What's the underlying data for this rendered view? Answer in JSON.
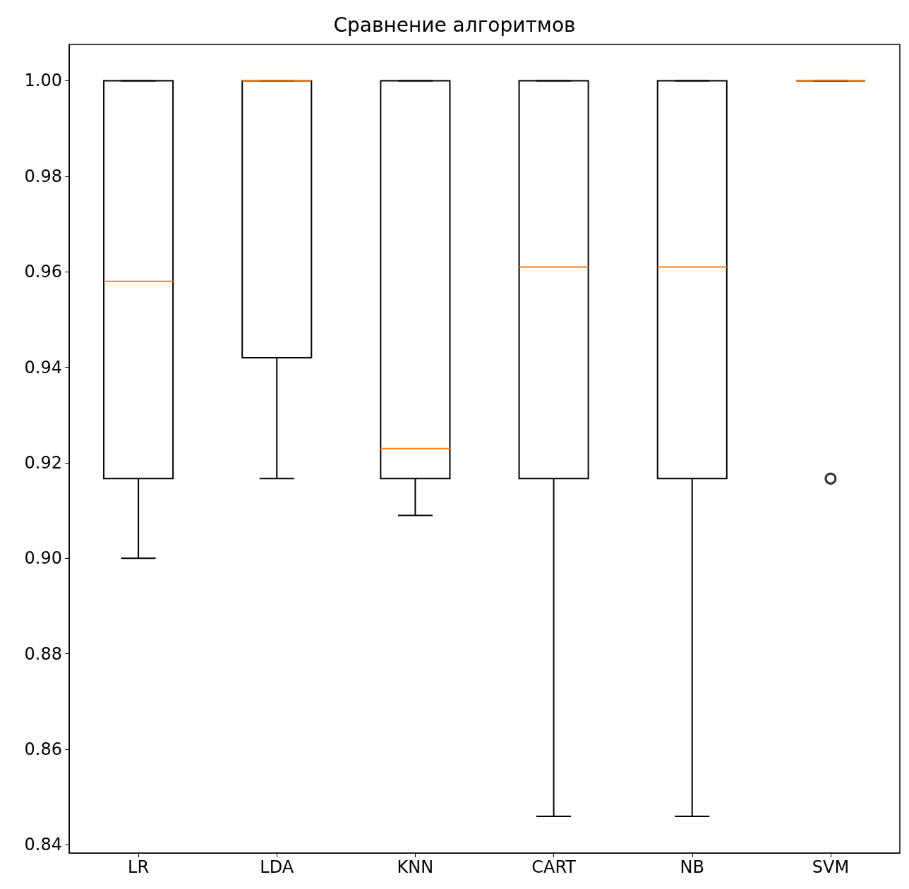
{
  "chart_data": {
    "type": "box",
    "title": "Сравнение алгоритмов",
    "categories": [
      "LR",
      "LDA",
      "KNN",
      "CART",
      "NB",
      "SVM"
    ],
    "series": [
      {
        "color": "#000000",
        "boxes": [
          {
            "low": 0.9,
            "q1": 0.9167,
            "median": 0.958,
            "q3": 1.0,
            "high": 1.0
          },
          {
            "low": 0.9167,
            "q1": 0.942,
            "median": 1.0,
            "q3": 1.0,
            "high": 1.0
          },
          {
            "low": 0.909,
            "q1": 0.9167,
            "median": 0.923,
            "q3": 1.0,
            "high": 1.0
          },
          {
            "low": 0.846,
            "q1": 0.9167,
            "median": 0.961,
            "q3": 1.0,
            "high": 1.0
          },
          {
            "low": 0.846,
            "q1": 0.9167,
            "median": 0.961,
            "q3": 1.0,
            "high": 1.0
          },
          {
            "low": 1.0,
            "q1": 1.0,
            "median": 1.0,
            "q3": 1.0,
            "high": 1.0,
            "outliers": [
              0.9167
            ]
          }
        ]
      }
    ],
    "ylim": [
      0.8383,
      1.0076
    ],
    "yticks": [
      0.84,
      0.86,
      0.88,
      {
        "value": 0.9,
        "label": "0.90"
      },
      0.92,
      0.94,
      0.96,
      0.98,
      {
        "value": 1.0,
        "label": "1.00"
      }
    ],
    "grid": false
  }
}
